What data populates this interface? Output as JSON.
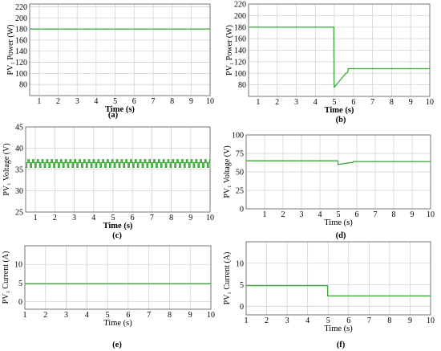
{
  "figure": {
    "panels": [
      {
        "id": "a",
        "caption": "(a)"
      },
      {
        "id": "b",
        "caption": "(b)"
      },
      {
        "id": "c",
        "caption": "(c)"
      },
      {
        "id": "d",
        "caption": "(d)"
      },
      {
        "id": "e",
        "caption": "(e)"
      },
      {
        "id": "f",
        "caption": "(f)"
      }
    ]
  },
  "colors": {
    "series": "#3aa834",
    "grid": "#d3d3d3",
    "axis": "#000000"
  },
  "chart_data": [
    {
      "panel": "a",
      "type": "line",
      "title": "",
      "xlabel": "Time (s)",
      "ylabel": "PV₁ Power (W)",
      "xlim": [
        0.5,
        10
      ],
      "ylim": [
        60,
        225
      ],
      "xticks": [
        "1",
        "2",
        "3",
        "4",
        "5",
        "6",
        "7",
        "8",
        "9",
        "10"
      ],
      "yticks": [
        "80",
        "100",
        "120",
        "140",
        "160",
        "180",
        "200",
        "220"
      ],
      "grid": true,
      "series": [
        {
          "x": [
            0.5,
            10
          ],
          "y": [
            180,
            180
          ]
        }
      ]
    },
    {
      "panel": "b",
      "type": "line",
      "title": "",
      "xlabel": "Time (s)",
      "ylabel": "PV₁ Power (W)",
      "xlim": [
        0.5,
        10
      ],
      "ylim": [
        60,
        220
      ],
      "xticks": [
        "1",
        "2",
        "3",
        "4",
        "5",
        "6",
        "7",
        "8",
        "9",
        "10"
      ],
      "yticks": [
        "80",
        "100",
        "120",
        "140",
        "160",
        "180",
        "200",
        "220"
      ],
      "grid": true,
      "series": [
        {
          "x": [
            0.5,
            4.97,
            4.98,
            5.0,
            5.1,
            5.2,
            5.3,
            5.4,
            5.5,
            5.6,
            5.7,
            5.72,
            10
          ],
          "y": [
            180,
            180,
            78,
            76,
            80,
            84,
            88,
            92,
            96,
            100,
            102,
            108,
            108
          ]
        }
      ]
    },
    {
      "panel": "c",
      "type": "line",
      "title": "",
      "xlabel": "Time (s)",
      "ylabel": "PV₁ Voltage (V)",
      "xlim": [
        0.5,
        10
      ],
      "ylim": [
        25,
        45
      ],
      "xticks": [
        "1",
        "2",
        "3",
        "4",
        "5",
        "6",
        "7",
        "8",
        "9",
        "10"
      ],
      "yticks": [
        "25",
        "30",
        "35",
        "40",
        "45"
      ],
      "grid": true,
      "series": [
        {
          "pattern": "square",
          "period": 0.24,
          "levels": [
            35.5,
            36.6,
            37.3
          ],
          "x_range": [
            0.5,
            10
          ]
        }
      ]
    },
    {
      "panel": "d",
      "type": "line",
      "title": "",
      "xlabel": "Time (s)",
      "ylabel": "PV₁ Voltage (V)",
      "xlim": [
        0,
        10
      ],
      "ylim": [
        0,
        100
      ],
      "xticks": [
        "1",
        "2",
        "3",
        "4",
        "5",
        "6",
        "7",
        "8",
        "9",
        "10"
      ],
      "yticks": [
        "0",
        "25",
        "50",
        "75",
        "100"
      ],
      "grid": true,
      "series": [
        {
          "x": [
            0,
            4.97,
            4.98,
            5.8,
            5.81,
            10
          ],
          "y": [
            65,
            65,
            60,
            63,
            64,
            64
          ]
        }
      ]
    },
    {
      "panel": "e",
      "type": "line",
      "title": "",
      "xlabel": "Time (s)",
      "ylabel": "PV₁ Current (A)",
      "xlim": [
        1,
        10
      ],
      "ylim": [
        -2,
        15
      ],
      "xticks": [
        "1",
        "2",
        "3",
        "4",
        "5",
        "6",
        "7",
        "8",
        "9",
        "10"
      ],
      "yticks": [
        "0",
        "5",
        "10"
      ],
      "grid": true,
      "series": [
        {
          "x": [
            1,
            10
          ],
          "y": [
            4.8,
            4.8
          ]
        }
      ]
    },
    {
      "panel": "f",
      "type": "line",
      "title": "",
      "xlabel": "Time (s)",
      "ylabel": "PV₁ Current (A)",
      "xlim": [
        1,
        10
      ],
      "ylim": [
        -2,
        15
      ],
      "xticks": [
        "1",
        "2",
        "3",
        "4",
        "5",
        "6",
        "7",
        "8",
        "9",
        "10"
      ],
      "yticks": [
        "0",
        "5",
        "10"
      ],
      "grid": true,
      "series": [
        {
          "x": [
            1,
            4.97,
            4.98,
            10
          ],
          "y": [
            4.8,
            4.8,
            2.4,
            2.4
          ]
        }
      ]
    }
  ]
}
